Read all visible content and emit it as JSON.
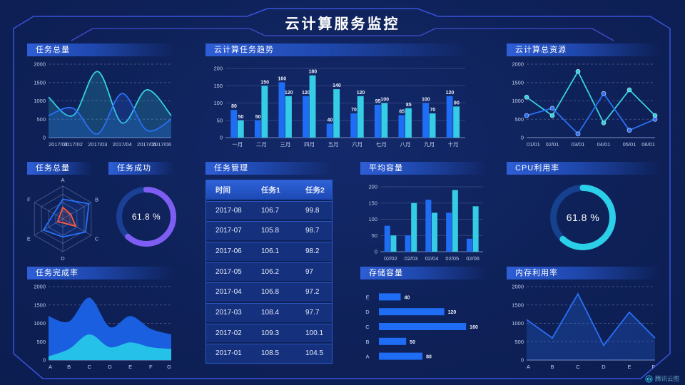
{
  "page": {
    "title": "云计算服务监控",
    "watermark": "腾讯云图"
  },
  "colors": {
    "background": "#0e2158",
    "frame": "#3d55e2",
    "frame_inner": "#4752d8",
    "blue": "#1f6df5",
    "cyan": "#35cde5",
    "purple": "#7e5ef2",
    "gauge_track_purple": "#1c3f96",
    "gauge_track_cyan": "#15418f",
    "header_gradient": "#2e5ed6",
    "axis_text": "#c2cdeb",
    "table_header": "#2f62d8"
  },
  "panels": {
    "p1": {
      "title": "任务总量"
    },
    "p2": {
      "title": "云计算任务趋势"
    },
    "p3": {
      "title": "云计算总资源"
    },
    "p4": {
      "title": "任务总量"
    },
    "p5": {
      "title": "任务成功"
    },
    "p6": {
      "title": "任务管理"
    },
    "p7": {
      "title": "平均容量"
    },
    "p8": {
      "title": "CPU利用率"
    },
    "p9": {
      "title": "任务完成率"
    },
    "p10": {
      "title": "存储容量"
    },
    "p11": {
      "title": "内存利用率"
    }
  },
  "chart_data": [
    {
      "id": "tasks-total-line",
      "type": "line",
      "title": "任务总量",
      "smooth": true,
      "area": true,
      "area_opacity": 0.2,
      "grid": true,
      "x": [
        "2017/01",
        "2017/02",
        "2017/03",
        "2017/04",
        "2017/05",
        "2017/06"
      ],
      "series": [
        {
          "name": "series-cyan",
          "color": "#35d2de",
          "values": [
            1100,
            600,
            1800,
            400,
            1300,
            600
          ]
        },
        {
          "name": "series-blue",
          "color": "#2a6ff5",
          "values": [
            600,
            800,
            100,
            1200,
            200,
            500
          ]
        }
      ],
      "ylim": [
        0,
        2000
      ],
      "yticks": [
        0,
        500,
        1000,
        1500,
        2000
      ]
    },
    {
      "id": "cloud-task-trend",
      "type": "bar",
      "title": "云计算任务趋势",
      "value_labels": true,
      "grid": true,
      "categories": [
        "一月",
        "二月",
        "三月",
        "四月",
        "五月",
        "六月",
        "七月",
        "八月",
        "九月",
        "十月"
      ],
      "series": [
        {
          "name": "任务1",
          "color": "#1f6df5",
          "values": [
            80,
            50,
            160,
            120,
            40,
            70,
            95,
            65,
            100,
            120
          ]
        },
        {
          "name": "任务2",
          "color": "#35cde5",
          "values": [
            50,
            150,
            120,
            180,
            140,
            120,
            100,
            85,
            70,
            90
          ]
        }
      ],
      "ylim": [
        0,
        200
      ],
      "yticks": [
        0,
        50,
        100,
        150,
        200
      ]
    },
    {
      "id": "cloud-total-resource",
      "type": "line",
      "title": "云计算总资源",
      "smooth": false,
      "markers": true,
      "grid": true,
      "x": [
        "01/01",
        "02/01",
        "03/01",
        "04/01",
        "05/01",
        "06/01"
      ],
      "series": [
        {
          "name": "series-cyan",
          "color": "#35d2de",
          "values": [
            1100,
            600,
            1800,
            400,
            1300,
            600
          ]
        },
        {
          "name": "series-blue",
          "color": "#2a6ff5",
          "values": [
            600,
            800,
            100,
            1200,
            200,
            500
          ]
        }
      ],
      "ylim": [
        0,
        2000
      ],
      "yticks": [
        0,
        500,
        1000,
        1500,
        2000
      ]
    },
    {
      "id": "tasks-radar",
      "type": "radar",
      "title": "任务总量",
      "axes": [
        "A",
        "B",
        "C",
        "D",
        "E",
        "F"
      ],
      "max": 100,
      "series": [
        {
          "name": "blue",
          "color": "#2a6ff5",
          "values": [
            60,
            92,
            80,
            55,
            68,
            32
          ]
        },
        {
          "name": "orange",
          "color": "#ff5a3c",
          "values": [
            35,
            28,
            45,
            12,
            18,
            12
          ]
        }
      ]
    },
    {
      "id": "task-success-gauge",
      "type": "gauge",
      "title": "任务成功",
      "value": 61.8,
      "label": "61.8 %",
      "sw": 8,
      "color": "#7e5ef2",
      "track": "#1c3f96"
    },
    {
      "id": "task-table",
      "type": "table",
      "title": "任务管理",
      "headers": [
        "时间",
        "任务1",
        "任务2"
      ],
      "rows": [
        [
          "2017-08",
          "106.7",
          "99.8"
        ],
        [
          "2017-07",
          "105.8",
          "98.7"
        ],
        [
          "2017-06",
          "106.1",
          "98.2"
        ],
        [
          "2017-05",
          "106.2",
          "97"
        ],
        [
          "2017-04",
          "106.8",
          "97.2"
        ],
        [
          "2017-03",
          "108.4",
          "97.7"
        ],
        [
          "2017-02",
          "109.3",
          "100.1"
        ],
        [
          "2017-01",
          "108.5",
          "104.5"
        ]
      ]
    },
    {
      "id": "avg-capacity",
      "type": "bar",
      "title": "平均容量",
      "value_labels": false,
      "grid": true,
      "categories": [
        "02/02",
        "02/03",
        "02/04",
        "02/05",
        "02/06"
      ],
      "series": [
        {
          "name": "series-blue",
          "color": "#1f6df5",
          "values": [
            80,
            50,
            160,
            120,
            40
          ]
        },
        {
          "name": "series-cyan",
          "color": "#35cde5",
          "values": [
            50,
            150,
            120,
            190,
            140
          ]
        }
      ],
      "ylim": [
        0,
        200
      ],
      "yticks": [
        0,
        50,
        100,
        150,
        200
      ]
    },
    {
      "id": "cpu-gauge",
      "type": "gauge",
      "title": "CPU利用率",
      "value": 61.8,
      "label": "61.8 %",
      "sw": 9,
      "color": "#2bd0e8",
      "track": "#15418f"
    },
    {
      "id": "task-completion-area",
      "type": "line",
      "title": "任务完成率",
      "smooth": true,
      "area": true,
      "area_opacity": 0.95,
      "stroke": false,
      "grid": true,
      "x": [
        "A",
        "B",
        "C",
        "D",
        "E",
        "F",
        "G"
      ],
      "series": [
        {
          "name": "blue-area",
          "color": "#1a63e8",
          "values": [
            1200,
            1050,
            1700,
            900,
            1200,
            850,
            700
          ]
        },
        {
          "name": "cyan-area",
          "color": "#27c6e8",
          "values": [
            100,
            300,
            700,
            350,
            480,
            350,
            300
          ]
        }
      ],
      "ylim": [
        0,
        2000
      ],
      "yticks": [
        0,
        500,
        1000,
        1500,
        2000
      ]
    },
    {
      "id": "storage-capacity",
      "type": "hbar",
      "title": "存储容量",
      "categories": [
        "E",
        "D",
        "C",
        "B",
        "A"
      ],
      "values": [
        40,
        120,
        160,
        50,
        80
      ],
      "color": "#1f6df5",
      "xmax": 165
    },
    {
      "id": "memory-line",
      "type": "line",
      "title": "内存利用率",
      "smooth": false,
      "area": true,
      "area_opacity": 0.25,
      "grid": true,
      "x": [
        "A",
        "B",
        "C",
        "D",
        "E",
        "F"
      ],
      "series": [
        {
          "name": "series-blue",
          "color": "#2a6ff5",
          "values": [
            1100,
            600,
            1800,
            400,
            1300,
            600
          ]
        }
      ],
      "ylim": [
        0,
        2000
      ],
      "yticks": [
        0,
        500,
        1000,
        1500,
        2000
      ]
    }
  ]
}
